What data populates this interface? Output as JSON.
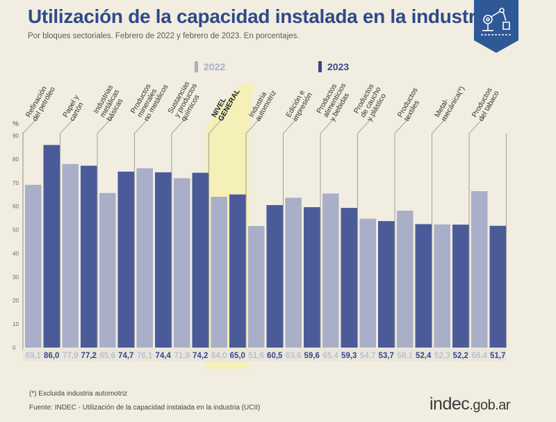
{
  "header": {
    "title": "Utilización de la capacidad instalada en la industria",
    "subtitle": "Por bloques sectoriales. Febrero de 2022 y febrero de 2023. En porcentajes."
  },
  "badge": {
    "icon": "industry-robot-arm-icon",
    "color": "#2e5896"
  },
  "legend": {
    "label_2022": "2022",
    "label_2023": "2023"
  },
  "colors": {
    "bar_2022": "#a9aec9",
    "bar_2023": "#4b5b9a",
    "label_2022": "#a9aec9",
    "label_2023": "#35478a",
    "highlight": "#f4f0b8",
    "background": "#f1ede0"
  },
  "chart_data": {
    "type": "bar",
    "ylabel": "%",
    "ylim": [
      0,
      90
    ],
    "yticks": [
      0,
      10,
      20,
      30,
      40,
      50,
      60,
      70,
      80,
      90
    ],
    "grid": false,
    "legend_position": "top",
    "highlight_category_index": 5,
    "categories": [
      [
        "Refinación",
        "del petróleo"
      ],
      [
        "Papel y",
        "cartón"
      ],
      [
        "Industrias",
        "metálicas",
        "básicas"
      ],
      [
        "Productos",
        "minerales",
        "no metálicos"
      ],
      [
        "Sustancias",
        "y productos",
        "químicos"
      ],
      [
        "NIVEL",
        "GENERAL"
      ],
      [
        "Industria",
        "automotriz"
      ],
      [
        "Edición e",
        "impresión"
      ],
      [
        "Productos",
        "alimenticios",
        "y bebidas"
      ],
      [
        "Productos",
        "de caucho",
        "y plástico"
      ],
      [
        "Productos",
        "textiles"
      ],
      [
        "Metal-",
        "mecánica(*)"
      ],
      [
        "Productos",
        "del tabaco"
      ]
    ],
    "series": [
      {
        "name": "2022",
        "values": [
          69.1,
          77.9,
          65.6,
          76.1,
          71.9,
          64.0,
          51.6,
          63.6,
          65.4,
          54.7,
          58.1,
          52.3,
          66.4
        ],
        "labels": [
          "69,1",
          "77,9",
          "65,6",
          "76,1",
          "71,9",
          "64,0",
          "51,6",
          "63,6",
          "65,4",
          "54,7",
          "58,1",
          "52,3",
          "66,4"
        ]
      },
      {
        "name": "2023",
        "values": [
          86.0,
          77.2,
          74.7,
          74.4,
          74.2,
          65.0,
          60.5,
          59.6,
          59.3,
          53.7,
          52.4,
          52.2,
          51.7
        ],
        "labels": [
          "86,0",
          "77,2",
          "74,7",
          "74,4",
          "74,2",
          "65,0",
          "60,5",
          "59,6",
          "59,3",
          "53,7",
          "52,4",
          "52,2",
          "51,7"
        ]
      }
    ]
  },
  "footer": {
    "footnote": "(*) Excluida industria automotriz",
    "source": "Fuente: INDEC - Utilización de la capacidad instalada en la industria (UCII)",
    "logo_main": "indec",
    "logo_suffix": ".gob.ar"
  }
}
